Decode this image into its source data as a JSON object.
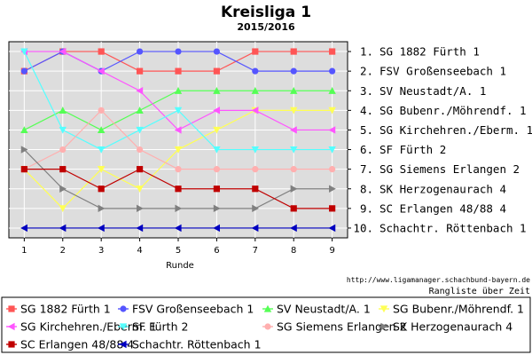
{
  "chart_data": {
    "type": "line",
    "title": "Kreisliga 1",
    "subtitle": "2015/2016",
    "xlabel": "Runde",
    "ylabel": "",
    "x": [
      1,
      2,
      3,
      4,
      5,
      6,
      7,
      8,
      9
    ],
    "xlim": [
      0.6,
      9.4
    ],
    "ylim": [
      10.5,
      0.5
    ],
    "grid": true,
    "legend_position": "bottom",
    "rank_labels": [
      "1. SG 1882 Fürth 1",
      "2. FSV Großenseebach 1",
      "3. SV Neustadt/A. 1",
      "4. SG Bubenr./Möhrendf. 1",
      "5. SG Kirchehren./Eberm. 1",
      "6. SF Fürth 2",
      "7. SG Siemens Erlangen 2",
      "8. SK Herzogenaurach 4",
      "9. SC Erlangen 48/88 4",
      "10. Schachtr. Röttenbach 1"
    ],
    "series": [
      {
        "name": "SG 1882 Fürth 1",
        "color": "#ff5555",
        "marker": "square",
        "values": [
          2,
          1,
          1,
          2,
          2,
          2,
          1,
          1,
          1
        ]
      },
      {
        "name": "FSV Großenseebach 1",
        "color": "#5555ff",
        "marker": "circle",
        "values": [
          2,
          1,
          2,
          1,
          1,
          1,
          2,
          2,
          2
        ]
      },
      {
        "name": "SV Neustadt/A. 1",
        "color": "#55ff55",
        "marker": "triangle-up",
        "values": [
          5,
          4,
          5,
          4,
          3,
          3,
          3,
          3,
          3
        ]
      },
      {
        "name": "SG Bubenr./Möhrendf. 1",
        "color": "#ffff55",
        "marker": "triangle-down",
        "values": [
          7,
          9,
          7,
          8,
          6,
          5,
          4,
          4,
          4
        ]
      },
      {
        "name": "SG Kirchehren./Eberm. 1",
        "color": "#ff55ff",
        "marker": "triangle-left",
        "values": [
          1,
          1,
          2,
          3,
          5,
          4,
          4,
          5,
          5
        ]
      },
      {
        "name": "SF Fürth 2",
        "color": "#55ffff",
        "marker": "triangle-down",
        "values": [
          1,
          5,
          6,
          5,
          4,
          6,
          6,
          6,
          6
        ]
      },
      {
        "name": "SG Siemens Erlangen 2",
        "color": "#ffafaf",
        "marker": "circle",
        "values": [
          7,
          6,
          4,
          6,
          7,
          7,
          7,
          7,
          7
        ]
      },
      {
        "name": "SK Herzogenaurach 4",
        "color": "#808080",
        "marker": "triangle-right",
        "values": [
          6,
          8,
          9,
          9,
          9,
          9,
          9,
          8,
          8
        ]
      },
      {
        "name": "SC Erlangen 48/88 4",
        "color": "#c00000",
        "marker": "square",
        "values": [
          7,
          7,
          8,
          7,
          8,
          8,
          8,
          9,
          9
        ]
      },
      {
        "name": "Schachtr. Röttenbach 1",
        "color": "#0000c0",
        "marker": "triangle-left",
        "values": [
          10,
          10,
          10,
          10,
          10,
          10,
          10,
          10,
          10
        ]
      }
    ],
    "footer_url": "http://www.ligamanager.schachbund-bayern.de",
    "footer_note": "Rangliste über Zeit"
  }
}
